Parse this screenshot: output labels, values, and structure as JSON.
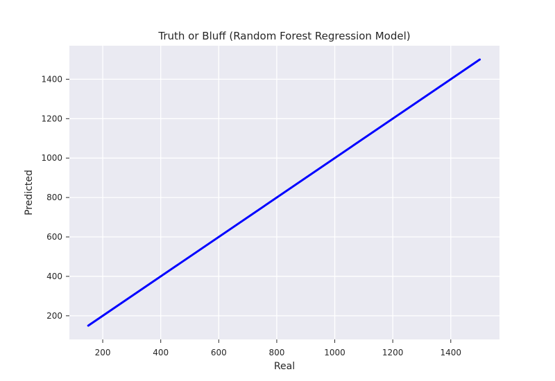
{
  "chart_data": {
    "type": "line",
    "title": "Truth or Bluff (Random Forest Regression Model)",
    "xlabel": "Real",
    "ylabel": "Predicted",
    "xlim": [
      85,
      1568
    ],
    "ylim": [
      80,
      1570
    ],
    "x_ticks": [
      200,
      400,
      600,
      800,
      1000,
      1200,
      1400
    ],
    "y_ticks": [
      200,
      400,
      600,
      800,
      1000,
      1200,
      1400
    ],
    "grid": true,
    "series": [
      {
        "x": [
          150,
          1500
        ],
        "y": [
          150,
          1500
        ]
      }
    ]
  },
  "colors": {
    "background": "#eaeaf2",
    "grid": "#ffffff",
    "line": "#0000ff",
    "text": "#262626"
  }
}
